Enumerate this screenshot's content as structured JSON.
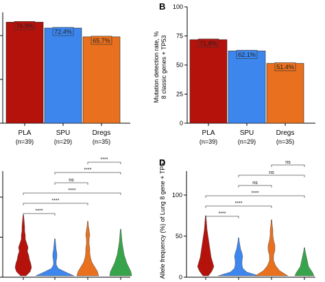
{
  "colors": {
    "PLA": "#b5120c",
    "SPU": "#3c86ee",
    "Dregs": "#e8701e",
    "Green": "#37a34a"
  },
  "panels": [
    {
      "letter": "",
      "ylabel_lines": []
    },
    {
      "letter": "B",
      "ylabel_lines": [
        "Mutation detection rate, %",
        "8 classic genes + TP53"
      ]
    },
    {
      "letter": "",
      "ylabel_lines": []
    },
    {
      "letter": "D",
      "ylabel_lines": [
        "Allele frequency (%) of Lung 8 gene + TP53"
      ]
    }
  ],
  "chart_data": [
    {
      "type": "bar",
      "categories": [
        "PLA",
        "SPU",
        "Dregs"
      ],
      "category_sublabels": [
        "(n=39)",
        "(n=29)",
        "(n=35)"
      ],
      "values": [
        76.9,
        72.4,
        65.7
      ],
      "value_labels": [
        "76.9%",
        "72.4%",
        "65.7%"
      ],
      "ylim": [
        0,
        100
      ],
      "yticks": [
        "",
        "",
        "",
        ""
      ],
      "title": "",
      "xlabel": "",
      "ylabel": ""
    },
    {
      "type": "bar",
      "categories": [
        "PLA",
        "SPU",
        "Dregs"
      ],
      "category_sublabels": [
        "(n=39)",
        "(n=29)",
        "(n=35)"
      ],
      "values": [
        71.8,
        62.1,
        51.4
      ],
      "value_labels": [
        "71.8%",
        "62.1%",
        "51.4%"
      ],
      "ylim": [
        0,
        100
      ],
      "yticks": [
        "0",
        "25",
        "50",
        "75",
        "100"
      ],
      "title": "",
      "xlabel": "",
      "ylabel": "Mutation detection rate, % 8 classic genes + TP53"
    },
    {
      "type": "violin",
      "groups": 4,
      "ylim": [
        0,
        100
      ],
      "significance": [
        {
          "from": 1,
          "to": 2,
          "label": "****"
        },
        {
          "from": 1,
          "to": 3,
          "label": "****"
        },
        {
          "from": 1,
          "to": 4,
          "label": "****"
        },
        {
          "from": 2,
          "to": 3,
          "label": "ns"
        },
        {
          "from": 2,
          "to": 4,
          "label": "****"
        },
        {
          "from": 3,
          "to": 4,
          "label": "****"
        }
      ]
    },
    {
      "type": "violin",
      "groups": 4,
      "ylim": [
        0,
        100
      ],
      "yticks": [
        "0",
        "50",
        "100"
      ],
      "ylabel": "Allele frequency (%) of Lung 8 gene + TP53",
      "significance": [
        {
          "from": 1,
          "to": 2,
          "label": "****"
        },
        {
          "from": 1,
          "to": 3,
          "label": "****"
        },
        {
          "from": 1,
          "to": 4,
          "label": "****"
        },
        {
          "from": 2,
          "to": 3,
          "label": "ns"
        },
        {
          "from": 2,
          "to": 4,
          "label": "ns"
        },
        {
          "from": 3,
          "to": 4,
          "label": "ns"
        }
      ]
    }
  ]
}
